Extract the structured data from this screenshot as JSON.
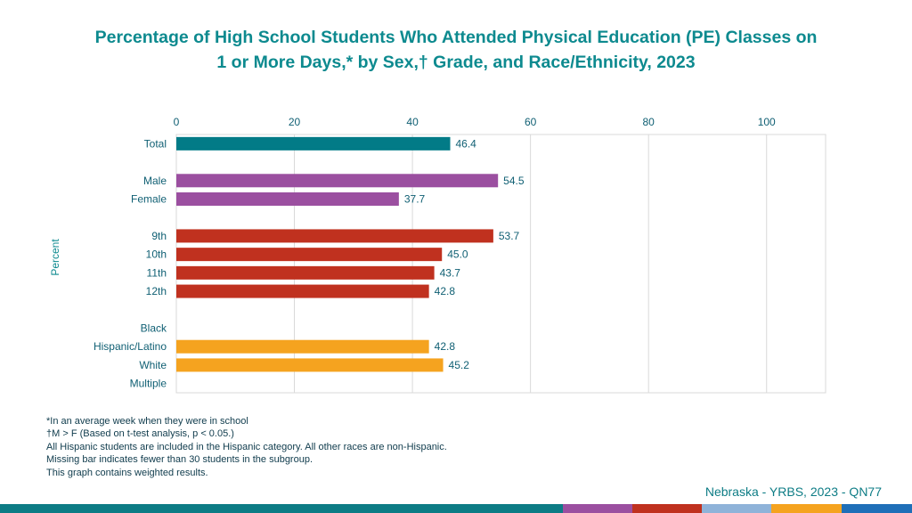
{
  "title": {
    "line1": "Percentage of High School Students Who Attended Physical Education (PE) Classes on",
    "line2": "1 or More Days,* by Sex,† Grade, and Race/Ethnicity, 2023"
  },
  "chart_data": {
    "type": "bar",
    "orientation": "horizontal",
    "ylabel": "Percent",
    "xlim": [
      0,
      110
    ],
    "xticks": [
      0,
      20,
      40,
      60,
      80,
      100
    ],
    "grid": true,
    "categories": [
      "Total",
      "",
      "Male",
      "Female",
      "",
      "9th",
      "10th",
      "11th",
      "12th",
      "",
      "Black",
      "Hispanic/Latino",
      "White",
      "Multiple"
    ],
    "values": [
      46.4,
      null,
      54.5,
      37.7,
      null,
      53.7,
      45.0,
      43.7,
      42.8,
      null,
      null,
      42.8,
      45.2,
      null
    ],
    "value_labels": [
      "46.4",
      "",
      "54.5",
      "37.7",
      "",
      "53.7",
      "45.0",
      "43.7",
      "42.8",
      "",
      "",
      "42.8",
      "45.2",
      ""
    ],
    "bar_colors": [
      "#027b87",
      null,
      "#9b4fa0",
      "#9b4fa0",
      null,
      "#c0311f",
      "#c0311f",
      "#c0311f",
      "#c0311f",
      null,
      "#f5a31f",
      "#f5a31f",
      "#f5a31f",
      "#f5a31f"
    ]
  },
  "footnotes": [
    "*In an average week when they were in school",
    "†M > F (Based on t-test analysis, p < 0.05.)",
    "All Hispanic students are included in the Hispanic category.  All other races are non-Hispanic.",
    "Missing bar indicates fewer than 30 students in the subgroup.",
    "This graph contains weighted results."
  ],
  "source": "Nebraska - YRBS, 2023 - QN77",
  "colors": {
    "title": "#0d8a8f",
    "axis_text": "#0f5f73",
    "grid": "#d9d9d9",
    "stripe": [
      "#0d7c85",
      "#9b4fa0",
      "#c0311f",
      "#8fb3d9",
      "#f5a31f",
      "#1f6fb8"
    ]
  }
}
